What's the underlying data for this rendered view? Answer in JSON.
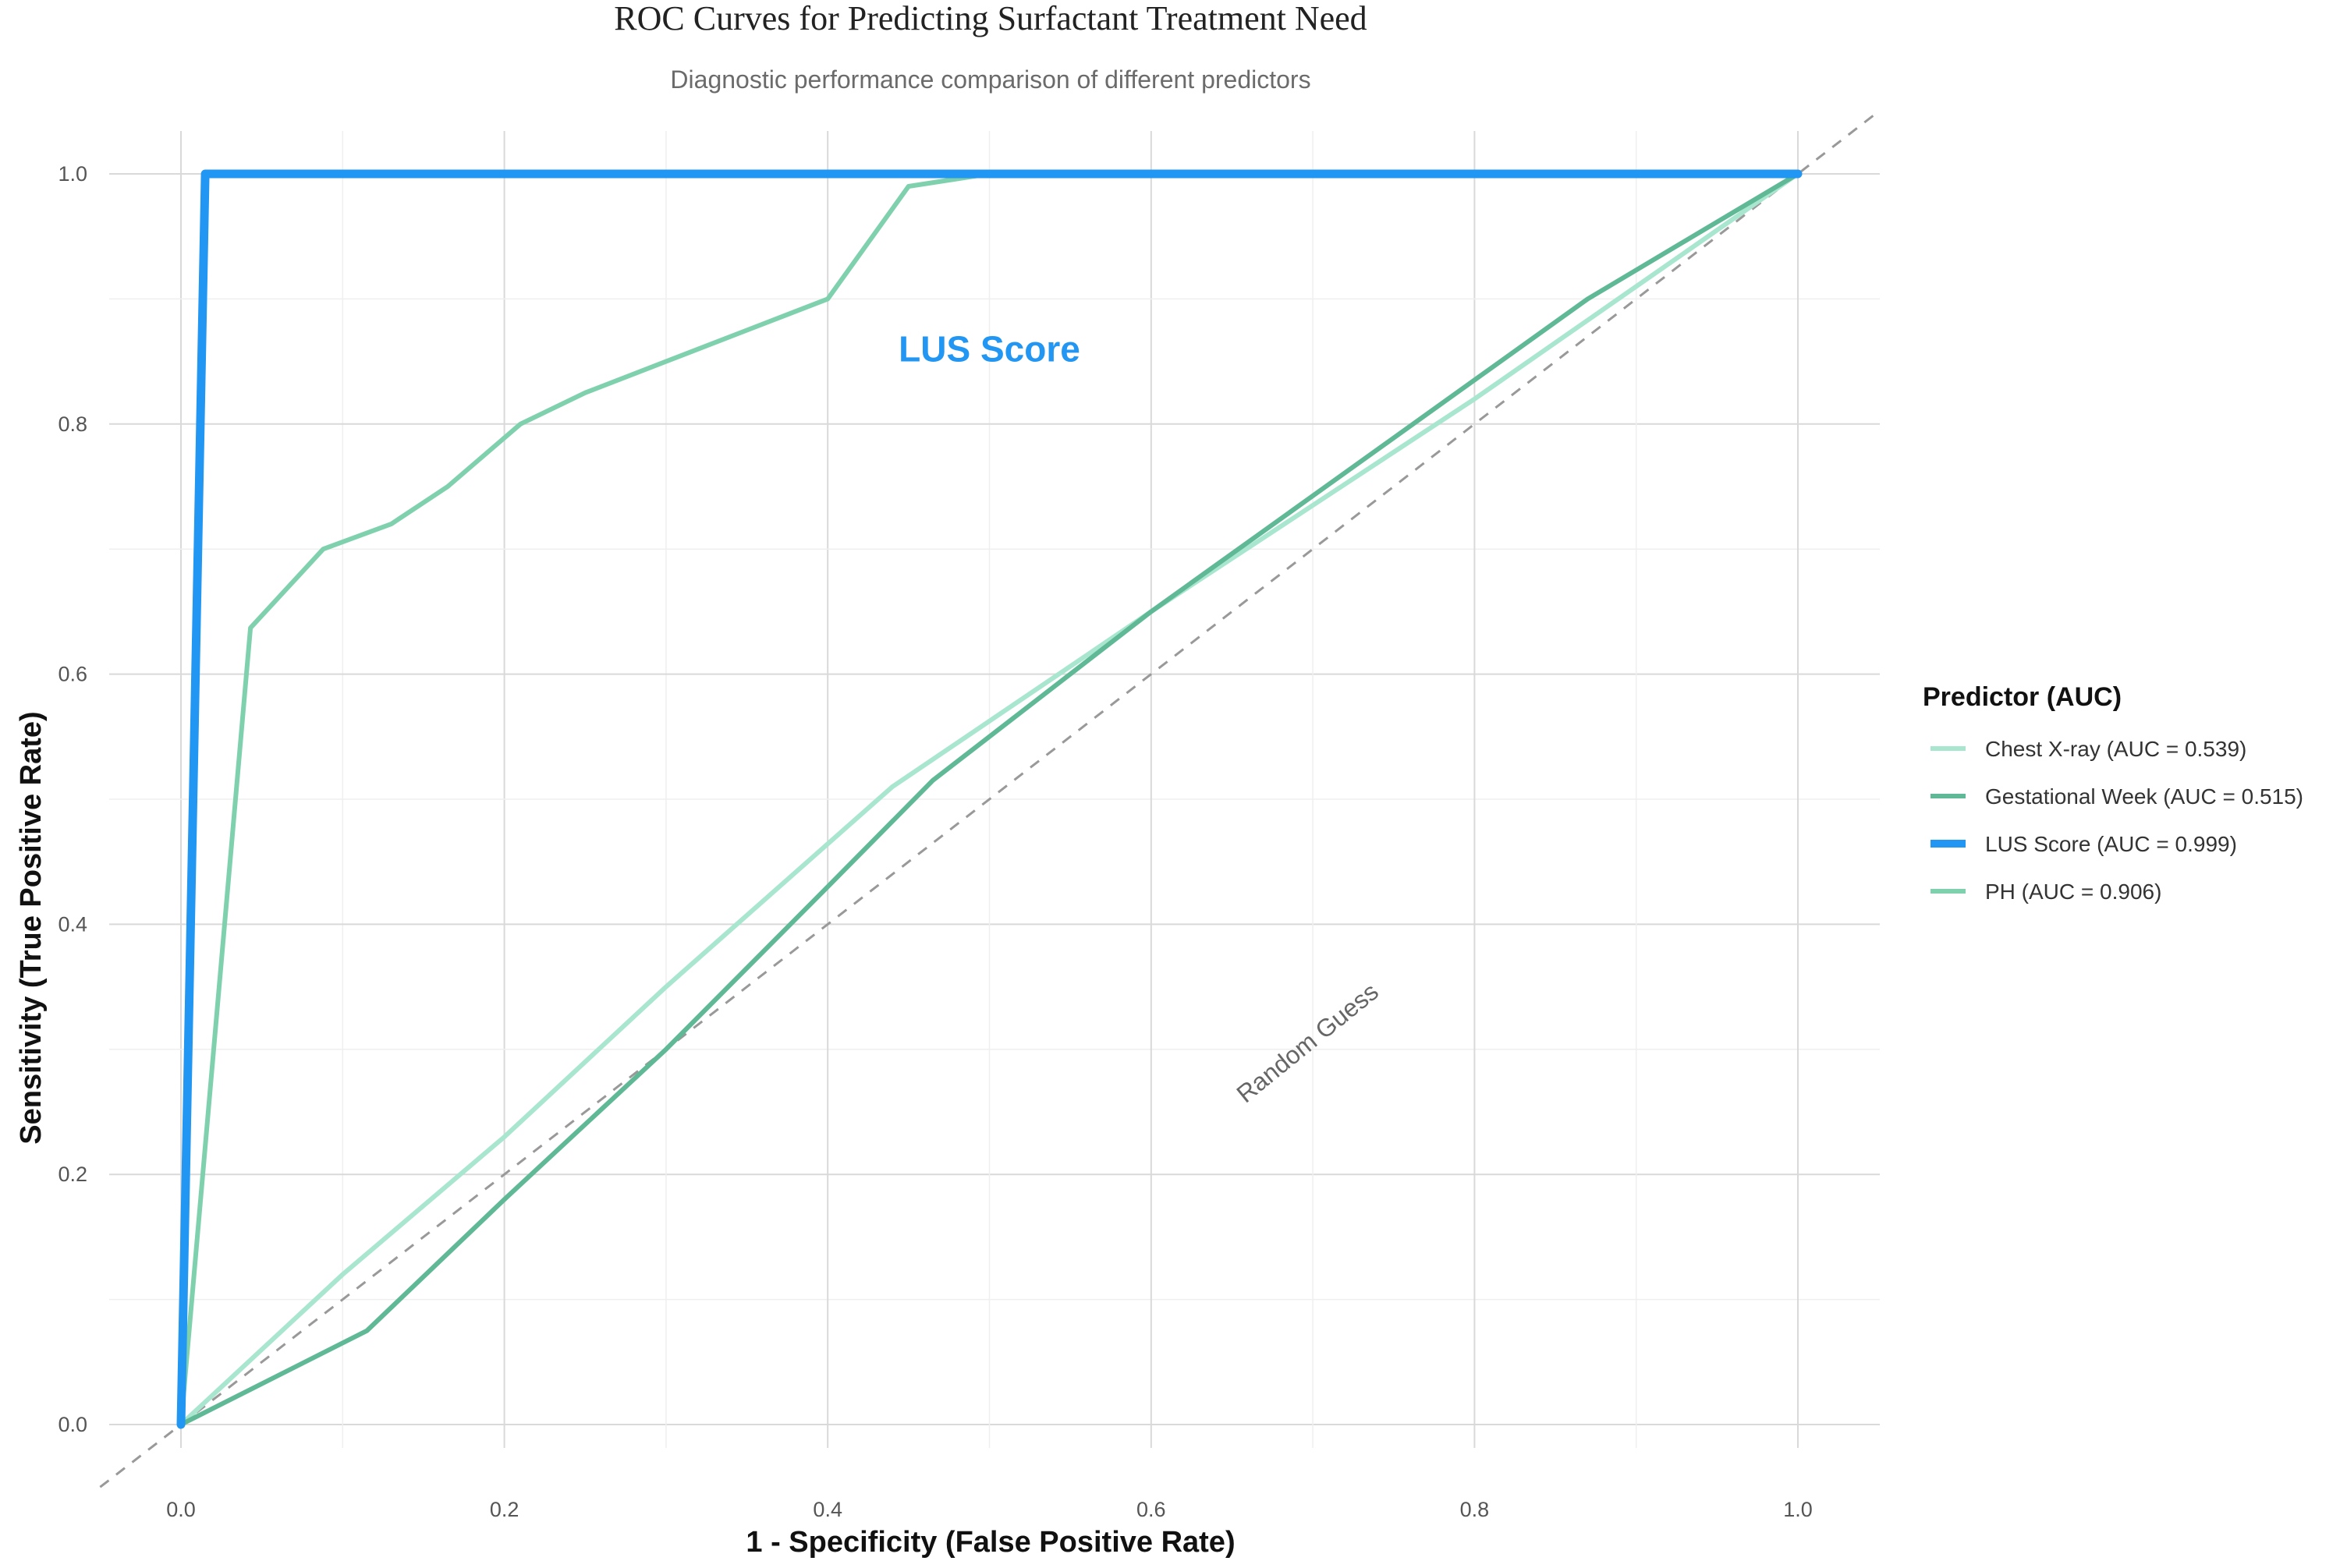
{
  "chart_data": {
    "type": "line",
    "title": "ROC Curves for Predicting Surfactant Treatment Need",
    "subtitle": "Diagnostic performance comparison of different predictors",
    "xlabel": "1 - Specificity (False Positive Rate)",
    "ylabel": "Sensitivity (True Positive Rate)",
    "xlim": [
      0,
      1
    ],
    "ylim": [
      0,
      1
    ],
    "xticks": [
      "0.0",
      "0.2",
      "0.4",
      "0.6",
      "0.8",
      "1.0"
    ],
    "yticks": [
      "0.0",
      "0.2",
      "0.4",
      "0.6",
      "0.8",
      "1.0"
    ],
    "grid": true,
    "legend": {
      "title": "Predictor (AUC)",
      "position": "right"
    },
    "series": [
      {
        "name": "Chest X-ray (AUC = 0.539)",
        "color": "#a8e6cf",
        "x": [
          0,
          0.1,
          0.2,
          0.3,
          0.44,
          0.6,
          0.8,
          1.0
        ],
        "y": [
          0,
          0.12,
          0.23,
          0.35,
          0.51,
          0.65,
          0.82,
          1.0
        ]
      },
      {
        "name": "Gestational Week (AUC = 0.515)",
        "color": "#5fb896",
        "x": [
          0,
          0.115,
          0.2,
          0.3,
          0.4,
          0.465,
          0.6,
          0.87,
          1.0
        ],
        "y": [
          0,
          0.075,
          0.18,
          0.3,
          0.43,
          0.515,
          0.65,
          0.9,
          1.0
        ]
      },
      {
        "name": "LUS Score (AUC = 0.999)",
        "color": "#2196f3",
        "x": [
          0,
          0.015,
          1.0
        ],
        "y": [
          0,
          1.0,
          1.0
        ]
      },
      {
        "name": "PH (AUC = 0.906)",
        "color": "#7fd1ae",
        "x": [
          0,
          0.043,
          0.088,
          0.13,
          0.165,
          0.21,
          0.25,
          0.3,
          0.35,
          0.4,
          0.45,
          0.5,
          1.0
        ],
        "y": [
          0,
          0.637,
          0.7,
          0.72,
          0.75,
          0.8,
          0.825,
          0.85,
          0.875,
          0.9,
          0.99,
          1.0,
          1.0
        ]
      }
    ],
    "reference_line": {
      "x": [
        0,
        1
      ],
      "y": [
        0,
        1
      ],
      "color": "#999999",
      "style": "dashed"
    },
    "annotations": [
      {
        "text": "LUS Score",
        "x": 0.5,
        "y": 0.85,
        "color": "#2196f3"
      },
      {
        "text": "Random Guess",
        "x": 0.7,
        "y": 0.3,
        "color": "#666666",
        "angle": -39
      }
    ]
  }
}
